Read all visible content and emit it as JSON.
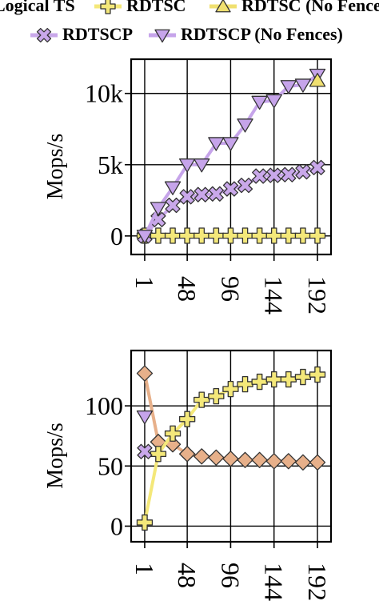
{
  "legend": {
    "row1": [
      {
        "label": "Logical TS",
        "marker": "none"
      },
      {
        "label": "RDTSC",
        "marker": "plus-marker"
      },
      {
        "label": "RDTSC (No Fences)",
        "marker": "triangle-up-marker"
      }
    ],
    "row2": [
      {
        "label": "RDTSCP",
        "marker": "x-marker"
      },
      {
        "label": "RDTSCP (No Fences)",
        "marker": "triangle-down-marker"
      }
    ]
  },
  "colors": {
    "rdtsc": "#f4e87a",
    "rdtsc_no_fences": "#f0e070",
    "rdtscp": "#c9a8ea",
    "rdtscp_no_fences": "#c6a4ea",
    "orange": "#e7b08a"
  },
  "chart_data": [
    {
      "type": "line",
      "x": [
        1,
        16,
        32,
        48,
        64,
        80,
        96,
        112,
        128,
        144,
        160,
        176,
        192
      ],
      "xticks": [
        "1",
        "48",
        "96",
        "144",
        "192"
      ],
      "xtick_values": [
        1,
        48,
        96,
        144,
        192
      ],
      "ylabel": "Mops/s",
      "yticks": [
        "0",
        "5k",
        "10k"
      ],
      "ytick_values": [
        0,
        5000,
        10000
      ],
      "ylim": [
        -1300,
        12400
      ],
      "xlim": [
        -14,
        207
      ],
      "grid": true,
      "series": [
        {
          "name": "RDTSC",
          "marker": "plus-marker",
          "color_key": "rdtsc",
          "values": [
            20,
            20,
            20,
            20,
            20,
            20,
            20,
            20,
            20,
            20,
            20,
            20,
            20
          ]
        },
        {
          "name": "RDTSCP",
          "marker": "x-marker",
          "color_key": "rdtscp",
          "values": [
            0,
            1150,
            2150,
            2750,
            2900,
            2950,
            3300,
            3550,
            4200,
            4250,
            4300,
            4500,
            4800
          ]
        },
        {
          "name": "RDTSCP (No Fences)",
          "marker": "triangle-down-marker",
          "color_key": "rdtscp_no_fences",
          "values": [
            0,
            1950,
            3400,
            5000,
            5000,
            6500,
            6500,
            7800,
            9400,
            9500,
            10500,
            10600,
            11300
          ]
        },
        {
          "name": "RDTSC (No Fences)",
          "marker": "triangle-up-marker",
          "color_key": "rdtsc_no_fences",
          "values": [
            null,
            null,
            null,
            null,
            null,
            null,
            null,
            null,
            null,
            null,
            null,
            null,
            10900
          ]
        }
      ]
    },
    {
      "type": "line",
      "x": [
        1,
        16,
        32,
        48,
        64,
        80,
        96,
        112,
        128,
        144,
        160,
        176,
        192
      ],
      "xticks": [
        "1",
        "48",
        "96",
        "144",
        "192"
      ],
      "xtick_values": [
        1,
        48,
        96,
        144,
        192
      ],
      "ylabel": "Mops/s",
      "yticks": [
        "0",
        "50",
        "100"
      ],
      "ytick_values": [
        0,
        50,
        100
      ],
      "ylim": [
        -13,
        146
      ],
      "xlim": [
        -14,
        207
      ],
      "grid": true,
      "series": [
        {
          "name": "",
          "marker": "diamond-marker",
          "color_key": "orange",
          "values": [
            127,
            70,
            68,
            60,
            58,
            57,
            56,
            55,
            55,
            54,
            54,
            53,
            53
          ]
        },
        {
          "name": "RDTSC",
          "marker": "plus-marker",
          "color_key": "rdtsc",
          "values": [
            3,
            60,
            77,
            89,
            105,
            108,
            114,
            118,
            120,
            122,
            122,
            124,
            126
          ]
        },
        {
          "name": "RDTSCP",
          "marker": "x-marker",
          "color_key": "rdtscp",
          "values": [
            62,
            null,
            null,
            null,
            null,
            null,
            null,
            null,
            null,
            null,
            null,
            null,
            null
          ]
        },
        {
          "name": "RDTSCP (No Fences)",
          "marker": "triangle-down-marker",
          "color_key": "rdtscp_no_fences",
          "values": [
            91,
            null,
            null,
            null,
            null,
            null,
            null,
            null,
            null,
            null,
            null,
            null,
            null
          ]
        }
      ]
    }
  ]
}
